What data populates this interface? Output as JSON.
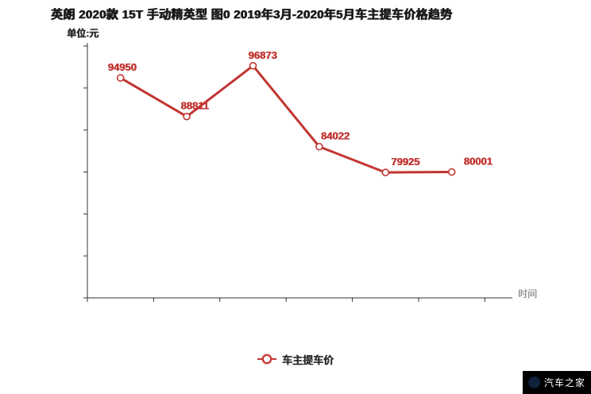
{
  "chart_data": {
    "type": "line",
    "title": "英朗 2020款 15T 手动精英型 图0 2019年3月-2020年5月车主提车价格趋势",
    "unit_label": "单位:元",
    "xlabel": "时间",
    "ylabel": "",
    "x_tick_labels": [],
    "y_tick_labels": [],
    "ylim": [
      60000,
      100000
    ],
    "grid": false,
    "legend_position": "bottom",
    "series": [
      {
        "name": "车主提车价",
        "color": "#c23531",
        "values": [
          94950,
          88811,
          96873,
          84022,
          79925,
          80001
        ],
        "point_labels": [
          "94950",
          "88811",
          "96873",
          "84022",
          "79925",
          "80001"
        ]
      }
    ]
  },
  "legend": {
    "item_label": "车主提车价"
  },
  "watermark": {
    "text": "汽车之家"
  },
  "colors": {
    "line": "#c23531",
    "label": "#c23531",
    "axis": "#333333",
    "title": "#1a1a1a",
    "axis_name": "#8d8d8d",
    "watermark_bg": "#000000",
    "watermark_text": "#ffffff"
  }
}
